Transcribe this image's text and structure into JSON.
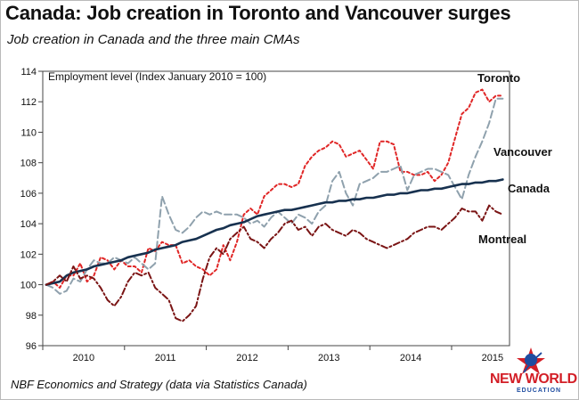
{
  "title": "Canada: Job creation in Toronto and Vancouver surges",
  "subtitle": "Job creation in Canada and the three main CMAs",
  "source": "NBF Economics and Strategy (data via Statistics Canada)",
  "logo": {
    "line1": "NEW WORLD",
    "line2": "EDUCATION"
  },
  "chart_data": {
    "type": "line",
    "ylabel": "Employment level (Index January 2010 = 100)",
    "ylim": [
      96,
      114
    ],
    "yticks": [
      96,
      98,
      100,
      102,
      104,
      106,
      108,
      110,
      112,
      114
    ],
    "xticks": [
      "2010",
      "2011",
      "2012",
      "2013",
      "2014",
      "2015"
    ],
    "x_start": "2010-01",
    "frequency": "monthly",
    "grid": false,
    "series": [
      {
        "name": "Toronto",
        "color": "#e02626",
        "dash": "dashed",
        "values": [
          100.0,
          100.2,
          99.8,
          100.6,
          100.6,
          101.4,
          100.2,
          100.6,
          101.8,
          101.6,
          101.0,
          101.6,
          101.2,
          101.2,
          100.8,
          102.4,
          102.2,
          102.8,
          102.6,
          102.6,
          101.4,
          101.6,
          101.2,
          101.0,
          100.6,
          101.0,
          102.6,
          101.6,
          102.8,
          104.6,
          105.0,
          104.6,
          105.8,
          106.2,
          106.6,
          106.6,
          106.4,
          106.6,
          107.8,
          108.4,
          108.8,
          109.0,
          109.4,
          109.2,
          108.4,
          108.6,
          108.8,
          108.2,
          107.6,
          109.4,
          109.4,
          109.2,
          107.4,
          107.4,
          107.2,
          107.2,
          107.4,
          106.8,
          107.2,
          108.0,
          109.6,
          111.2,
          111.6,
          112.6,
          112.8,
          112.0,
          112.4,
          112.4
        ]
      },
      {
        "name": "Vancouver",
        "color": "#8fa1ad",
        "dash": "longdash",
        "values": [
          100.0,
          99.8,
          99.4,
          99.6,
          100.4,
          100.2,
          101.0,
          101.6,
          101.4,
          101.4,
          101.8,
          101.6,
          101.4,
          101.8,
          101.4,
          101.0,
          101.4,
          105.8,
          104.6,
          103.6,
          103.4,
          103.8,
          104.4,
          104.8,
          104.6,
          104.8,
          104.6,
          104.6,
          104.6,
          104.4,
          104.0,
          104.2,
          103.8,
          104.4,
          104.8,
          104.4,
          104.0,
          104.6,
          104.4,
          104.0,
          104.8,
          105.2,
          106.8,
          107.4,
          106.0,
          105.2,
          106.6,
          106.8,
          107.0,
          107.4,
          107.4,
          107.6,
          107.8,
          106.2,
          107.2,
          107.4,
          107.6,
          107.6,
          107.4,
          107.2,
          106.4,
          105.6,
          107.2,
          108.4,
          109.4,
          110.6,
          112.2,
          112.2
        ]
      },
      {
        "name": "Canada",
        "color": "#17314f",
        "dash": "solid",
        "values": [
          100.0,
          100.1,
          100.2,
          100.6,
          100.8,
          100.9,
          101.0,
          101.2,
          101.3,
          101.4,
          101.5,
          101.6,
          101.8,
          101.9,
          102.0,
          102.1,
          102.3,
          102.4,
          102.5,
          102.6,
          102.8,
          102.9,
          103.0,
          103.2,
          103.4,
          103.6,
          103.7,
          103.9,
          104.0,
          104.1,
          104.3,
          104.5,
          104.6,
          104.7,
          104.8,
          104.9,
          104.9,
          105.0,
          105.1,
          105.2,
          105.3,
          105.4,
          105.4,
          105.5,
          105.5,
          105.6,
          105.6,
          105.7,
          105.7,
          105.8,
          105.9,
          105.9,
          106.0,
          106.0,
          106.1,
          106.2,
          106.2,
          106.3,
          106.3,
          106.4,
          106.5,
          106.6,
          106.6,
          106.7,
          106.7,
          106.8,
          106.8,
          106.9
        ]
      },
      {
        "name": "Montreal",
        "color": "#7a1414",
        "dash": "dashdot",
        "values": [
          100.0,
          100.2,
          100.6,
          100.2,
          101.2,
          100.4,
          100.6,
          100.4,
          99.8,
          99.0,
          98.6,
          99.2,
          100.2,
          100.8,
          100.6,
          100.8,
          99.8,
          99.4,
          99.0,
          97.8,
          97.6,
          98.0,
          98.6,
          100.4,
          101.8,
          102.4,
          102.0,
          103.0,
          103.4,
          103.8,
          103.0,
          102.8,
          102.4,
          103.0,
          103.4,
          104.0,
          104.2,
          103.6,
          103.8,
          103.2,
          103.8,
          104.0,
          103.6,
          103.4,
          103.2,
          103.6,
          103.4,
          103.0,
          102.8,
          102.6,
          102.4,
          102.6,
          102.8,
          103.0,
          103.4,
          103.6,
          103.8,
          103.8,
          103.6,
          104.0,
          104.4,
          105.0,
          104.8,
          104.8,
          104.2,
          105.2,
          104.8,
          104.6
        ]
      }
    ]
  }
}
